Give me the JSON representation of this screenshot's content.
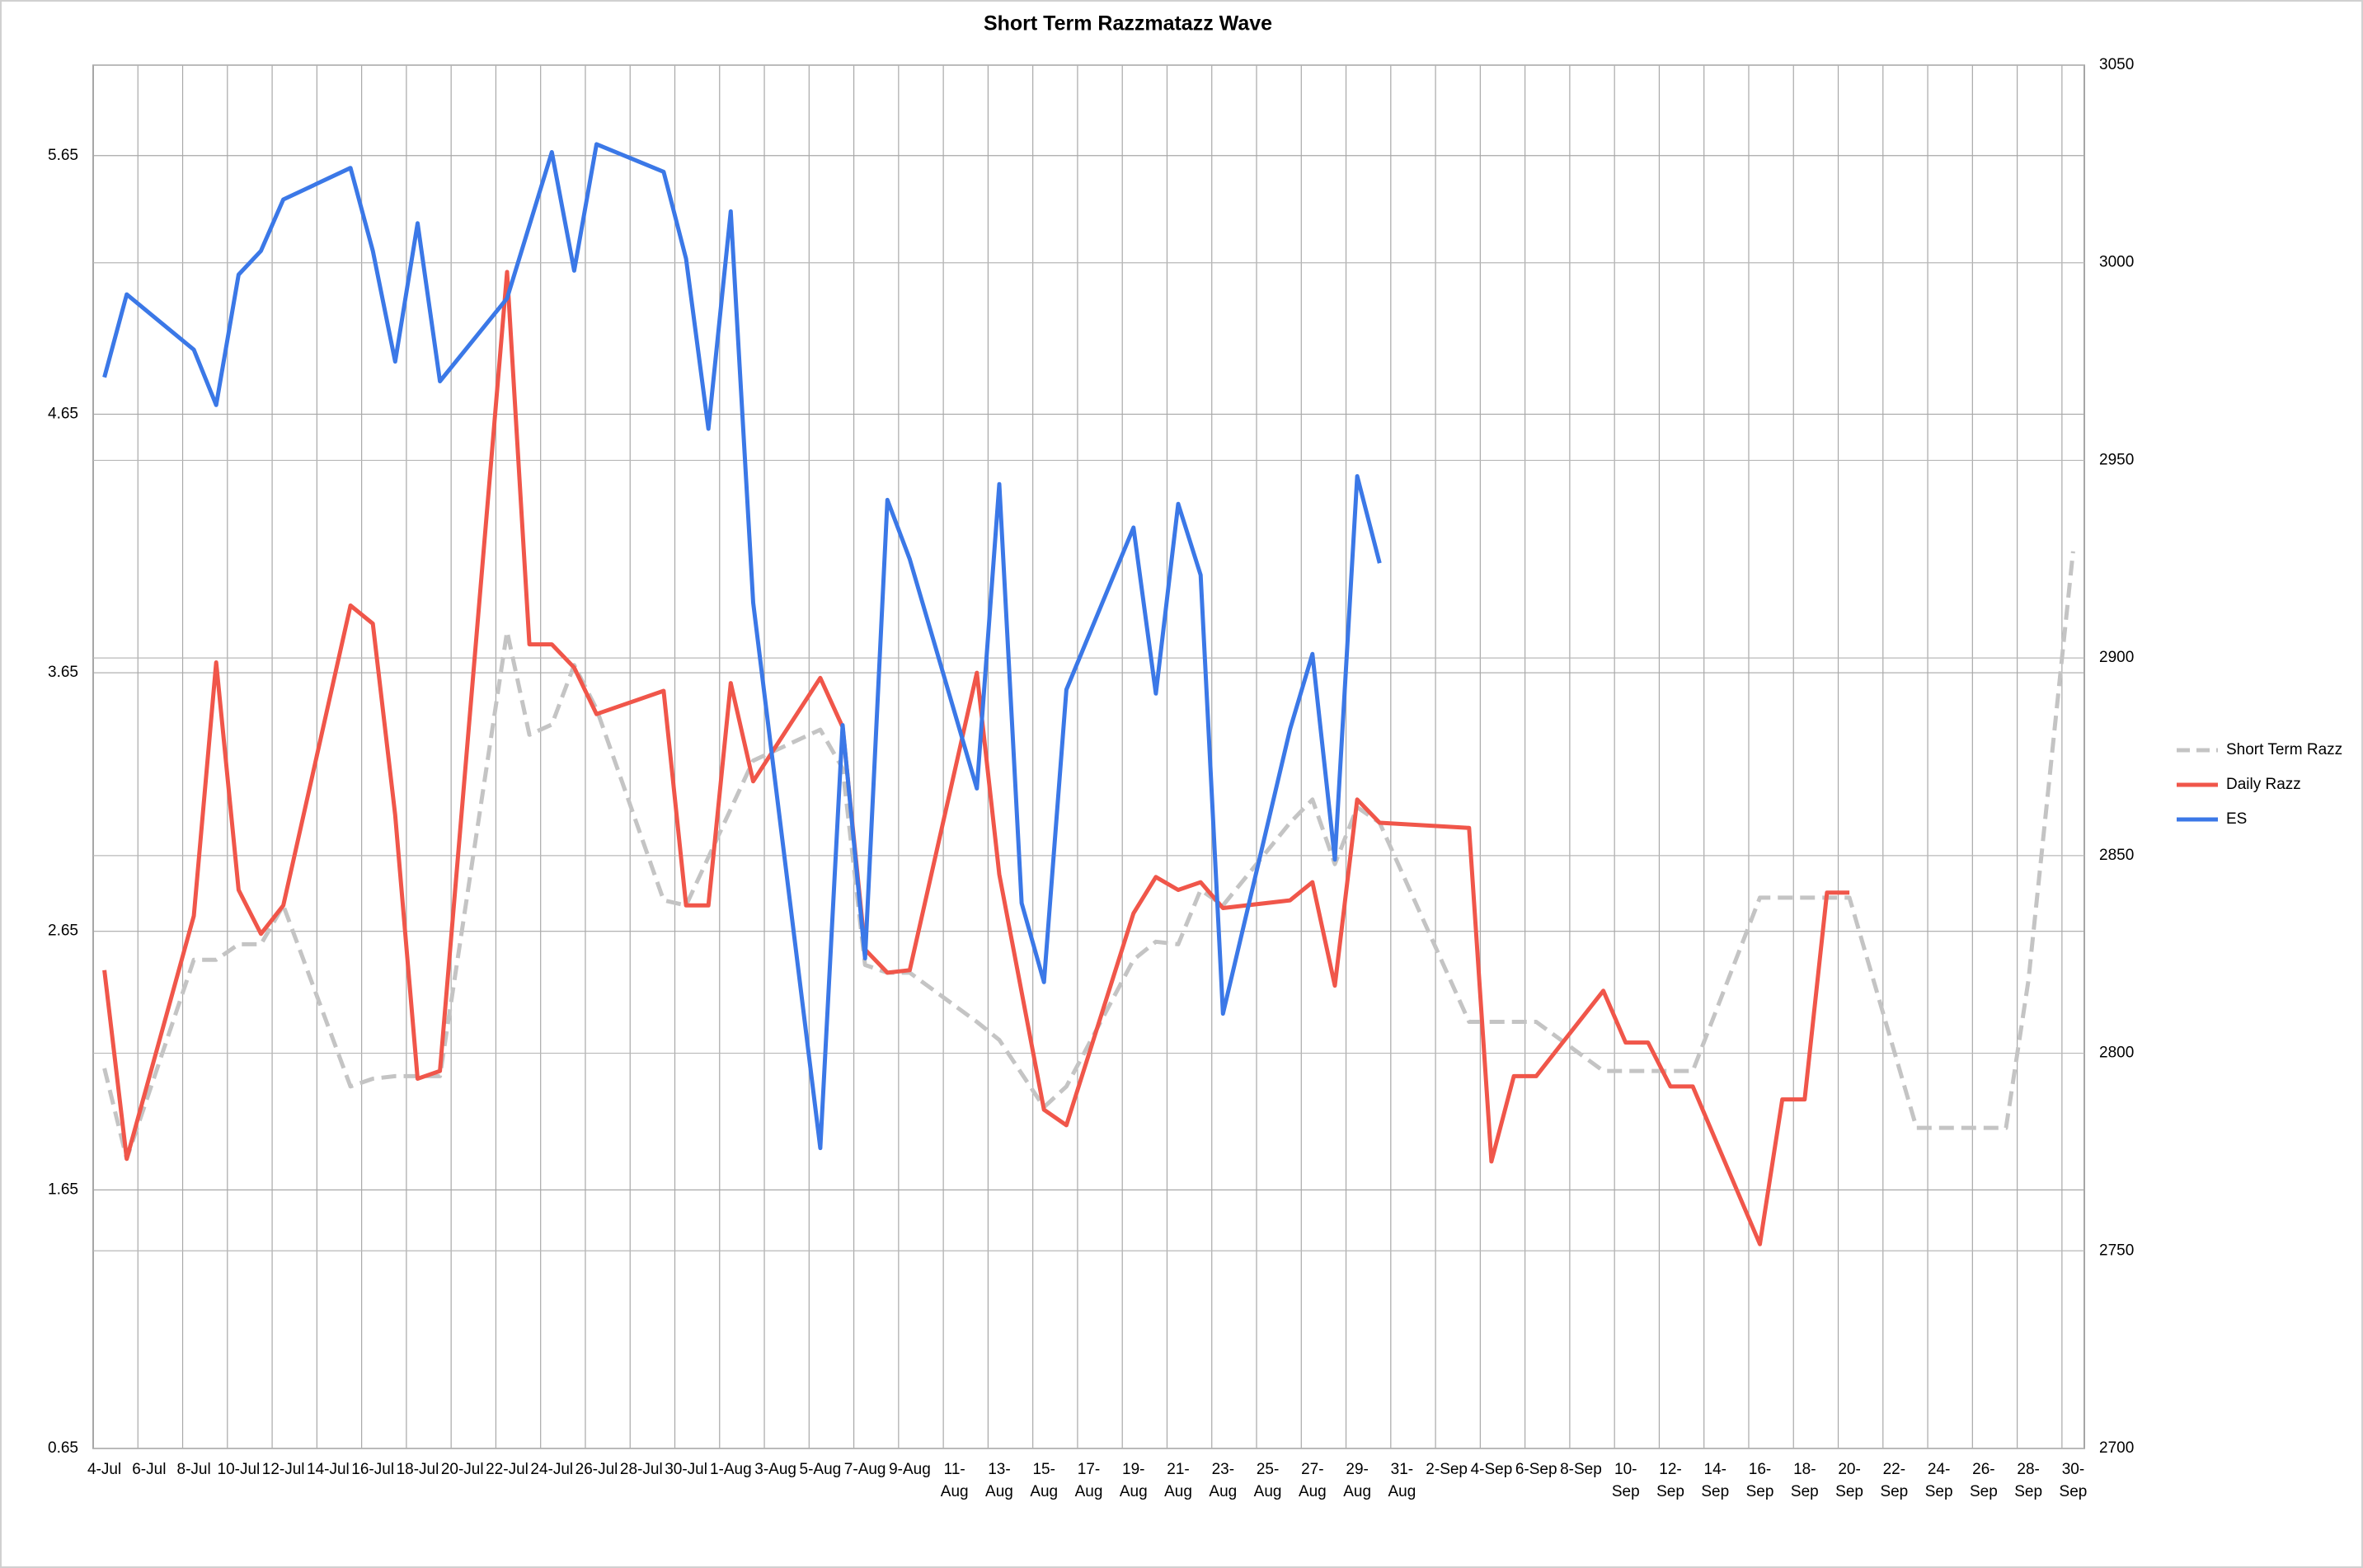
{
  "chart_data": {
    "type": "line",
    "title": "Short Term Razzmatazz Wave",
    "categories": [
      "4-Jul",
      null,
      "6-Jul",
      null,
      "8-Jul",
      null,
      "10-Jul",
      null,
      "12-Jul",
      null,
      "14-Jul",
      null,
      "16-Jul",
      null,
      "18-Jul",
      null,
      "20-Jul",
      null,
      "22-Jul",
      null,
      "24-Jul",
      null,
      "26-Jul",
      null,
      "28-Jul",
      null,
      "30-Jul",
      null,
      "1-Aug",
      null,
      "3-Aug",
      null,
      "5-Aug",
      null,
      "7-Aug",
      null,
      "9-Aug",
      null,
      "11-Aug",
      null,
      "13-Aug",
      null,
      "15-Aug",
      null,
      "17-Aug",
      null,
      "19-Aug",
      null,
      "21-Aug",
      null,
      "23-Aug",
      null,
      "25-Aug",
      null,
      "27-Aug",
      null,
      "29-Aug",
      null,
      "31-Aug",
      null,
      "2-Sep",
      null,
      "4-Sep",
      null,
      "6-Sep",
      null,
      "8-Sep",
      null,
      "10-Sep",
      null,
      "12-Sep",
      null,
      "14-Sep",
      null,
      "16-Sep",
      null,
      "18-Sep",
      null,
      "20-Sep",
      null,
      "22-Sep",
      null,
      "24-Sep",
      null,
      "26-Sep",
      null,
      "28-Sep",
      null,
      "30-Sep"
    ],
    "series": [
      {
        "name": "Short Term Razz",
        "color": "#c4c4c4",
        "dashed": true,
        "values": [
          2.12,
          1.77,
          null,
          null,
          2.54,
          2.54,
          2.6,
          2.6,
          2.75,
          null,
          null,
          2.05,
          2.08,
          2.09,
          null,
          2.09,
          null,
          null,
          3.81,
          3.41,
          3.45,
          3.68,
          3.51,
          null,
          null,
          2.77,
          2.75,
          null,
          null,
          3.31,
          null,
          null,
          3.43,
          3.28,
          2.52,
          2.49,
          2.49,
          null,
          null,
          2.3,
          2.23,
          2.1,
          1.97,
          2.05,
          null,
          null,
          2.54,
          2.61,
          2.6,
          2.81,
          2.75,
          null,
          null,
          3.07,
          3.16,
          2.91,
          3.13,
          3.07,
          null,
          null,
          null,
          2.3,
          2.3,
          null,
          2.3,
          null,
          null,
          2.11,
          null,
          2.11,
          null,
          2.11,
          null,
          null,
          2.78,
          null,
          null,
          2.78,
          2.78,
          null,
          null,
          1.89,
          1.89,
          null,
          null,
          1.89,
          2.46,
          null,
          4.12
        ]
      },
      {
        "name": "Daily Razz",
        "color": "#f0564a",
        "values": [
          2.5,
          1.77,
          null,
          null,
          2.71,
          3.69,
          2.81,
          2.64,
          2.75,
          null,
          null,
          3.91,
          3.84,
          3.1,
          2.08,
          2.11,
          null,
          null,
          5.2,
          3.76,
          3.76,
          3.67,
          3.49,
          null,
          null,
          3.58,
          2.75,
          2.75,
          3.61,
          3.23,
          null,
          null,
          3.63,
          3.44,
          2.58,
          2.49,
          2.5,
          null,
          null,
          3.65,
          2.87,
          null,
          1.96,
          1.9,
          null,
          null,
          2.72,
          2.86,
          2.81,
          2.84,
          2.74,
          null,
          null,
          2.77,
          2.84,
          2.44,
          3.16,
          3.07,
          null,
          null,
          null,
          3.05,
          1.76,
          2.09,
          2.09,
          null,
          null,
          2.42,
          2.22,
          2.22,
          2.05,
          2.05,
          null,
          null,
          1.44,
          2.0,
          2.0,
          2.8,
          2.8,
          null,
          null,
          null,
          null,
          null,
          null,
          null,
          null,
          null,
          null
        ]
      },
      {
        "name": "ES",
        "color": "#3b78e7",
        "axis": "y2",
        "values": [
          2971,
          2992,
          null,
          null,
          2978,
          2964,
          2997,
          3003,
          3016,
          null,
          null,
          3024,
          3003,
          2975,
          3010,
          2970,
          null,
          null,
          2991,
          null,
          3028,
          2998,
          3030,
          null,
          null,
          3023,
          3001,
          2958,
          3013,
          2914,
          null,
          null,
          2776,
          2883,
          2824,
          2940,
          2925,
          null,
          null,
          2867,
          2944,
          2838,
          2818,
          2892,
          null,
          null,
          2933,
          2891,
          2939,
          2921,
          2810,
          null,
          null,
          2882,
          2901,
          2849,
          2946,
          2924,
          null,
          null,
          null,
          null,
          null,
          null,
          null,
          null,
          null,
          null,
          null,
          null,
          null,
          null,
          null,
          null,
          null,
          null,
          null,
          null,
          null,
          null,
          null,
          null,
          null,
          null,
          null,
          null,
          null,
          null,
          null
        ]
      }
    ],
    "connect_gaps": true,
    "ylim": [
      0.65,
      6.0
    ],
    "yticks": [
      0.65,
      1.65,
      2.65,
      3.65,
      4.65,
      5.65
    ],
    "y2lim": [
      2700,
      3050
    ],
    "y2ticks": [
      2700,
      2750,
      2800,
      2850,
      2900,
      2950,
      3000,
      3050
    ],
    "grid": true,
    "legend": "right"
  }
}
